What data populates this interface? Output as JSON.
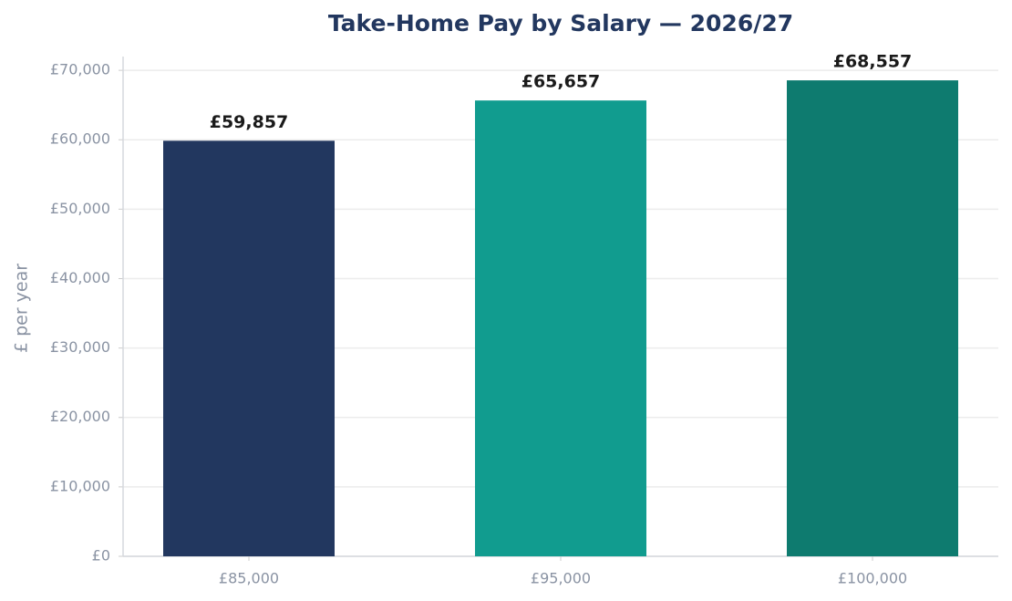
{
  "chart_data": {
    "type": "bar",
    "title": "Take-Home Pay by Salary — 2026/27",
    "y_label": "£ per year",
    "categories": [
      "£85,000",
      "£95,000",
      "£100,000"
    ],
    "values": [
      59857,
      65657,
      68557
    ],
    "value_labels": [
      "£59,857",
      "£65,657",
      "£68,557"
    ],
    "colors": [
      "#22375f",
      "#119c8f",
      "#0e7b6f"
    ],
    "ylim": [
      0,
      71985
    ],
    "yticks": [
      {
        "value": 0,
        "label": "£0"
      },
      {
        "value": 10000,
        "label": "£10,000"
      },
      {
        "value": 20000,
        "label": "£20,000"
      },
      {
        "value": 30000,
        "label": "£30,000"
      },
      {
        "value": 40000,
        "label": "£40,000"
      },
      {
        "value": 50000,
        "label": "£50,000"
      },
      {
        "value": 60000,
        "label": "£60,000"
      },
      {
        "value": 70000,
        "label": "£70,000"
      }
    ],
    "grid": true
  }
}
